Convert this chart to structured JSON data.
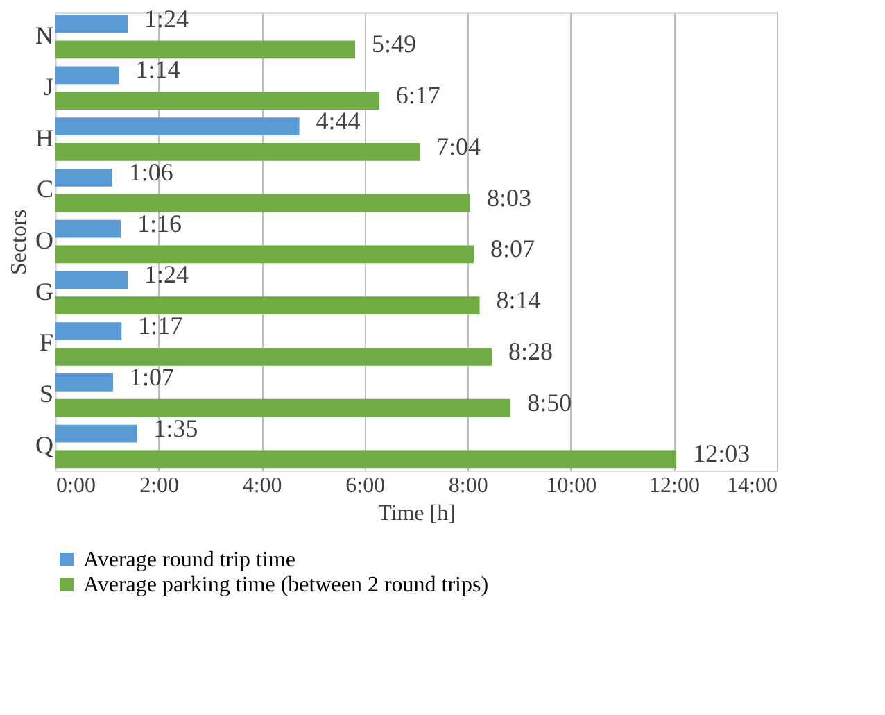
{
  "chart_data": {
    "type": "bar",
    "orientation": "horizontal",
    "xlabel": "Time [h]",
    "ylabel": "Sectors",
    "categories": [
      "N",
      "J",
      "H",
      "C",
      "O",
      "G",
      "F",
      "S",
      "Q"
    ],
    "series": [
      {
        "name": "Average round trip time",
        "color": "#5b9bd5",
        "values": [
          1.4,
          1.233,
          4.733,
          1.1,
          1.267,
          1.4,
          1.283,
          1.117,
          1.583
        ],
        "value_labels": [
          "1:24",
          "1:14",
          "4:44",
          "1:06",
          "1:16",
          "1:24",
          "1:17",
          "1:07",
          "1:35"
        ]
      },
      {
        "name": "Average parking time (between 2 round trips)",
        "color": "#70ad47",
        "values": [
          5.817,
          6.283,
          7.067,
          8.05,
          8.117,
          8.233,
          8.467,
          8.833,
          12.05
        ],
        "value_labels": [
          "5:49",
          "6:17",
          "7:04",
          "8:03",
          "8:07",
          "8:14",
          "8:28",
          "8:50",
          "12:03"
        ]
      }
    ],
    "xlim": [
      0,
      14
    ],
    "xticks": [
      {
        "value": 0,
        "label": "0:00"
      },
      {
        "value": 2,
        "label": "2:00"
      },
      {
        "value": 4,
        "label": "4:00"
      },
      {
        "value": 6,
        "label": "6:00"
      },
      {
        "value": 8,
        "label": "8:00"
      },
      {
        "value": 10,
        "label": "10:00"
      },
      {
        "value": 12,
        "label": "12:00"
      },
      {
        "value": 14,
        "label": "14:00"
      }
    ],
    "grid": "x",
    "legend": "bottom"
  }
}
